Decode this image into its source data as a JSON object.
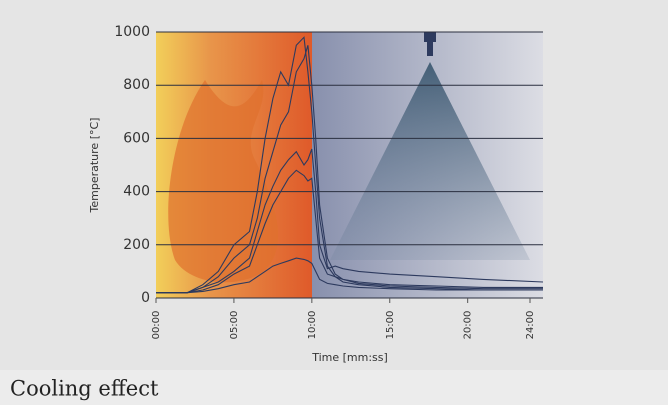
{
  "chart_data": {
    "type": "line",
    "caption": "Cooling effect",
    "xlabel": "Time [mm:ss]",
    "ylabel": "Temperature [°C]",
    "x": [
      0,
      60,
      120,
      180,
      240,
      300,
      360,
      390,
      420,
      450,
      480,
      510,
      540,
      570,
      585,
      600,
      615,
      630,
      660,
      690,
      720,
      780,
      900,
      1080,
      1260,
      1490
    ],
    "series": [
      {
        "color": "#2d3a5e",
        "values": [
          20,
          20,
          20,
          50,
          100,
          200,
          250,
          400,
          600,
          750,
          850,
          800,
          950,
          980,
          850,
          700,
          500,
          300,
          120,
          80,
          60,
          50,
          40,
          35,
          30,
          30
        ]
      },
      {
        "color": "#2d3a5e",
        "values": [
          20,
          20,
          20,
          40,
          80,
          150,
          200,
          300,
          450,
          550,
          650,
          700,
          850,
          900,
          950,
          800,
          600,
          350,
          150,
          90,
          70,
          55,
          45,
          40,
          35,
          35
        ]
      },
      {
        "color": "#2d3a5e",
        "values": [
          20,
          20,
          20,
          40,
          60,
          100,
          150,
          250,
          350,
          420,
          480,
          520,
          550,
          500,
          520,
          560,
          400,
          200,
          110,
          120,
          110,
          100,
          90,
          80,
          70,
          60
        ]
      },
      {
        "color": "#2d3a5e",
        "values": [
          20,
          20,
          20,
          30,
          50,
          90,
          120,
          200,
          280,
          350,
          400,
          450,
          480,
          460,
          440,
          450,
          300,
          150,
          90,
          80,
          70,
          60,
          50,
          45,
          40,
          40
        ]
      },
      {
        "color": "#2d3a5e",
        "values": [
          20,
          20,
          20,
          25,
          35,
          50,
          60,
          80,
          100,
          120,
          130,
          140,
          150,
          145,
          140,
          130,
          100,
          70,
          55,
          50,
          45,
          40,
          35,
          30,
          30,
          30
        ]
      }
    ],
    "xlim": [
      0,
      1490
    ],
    "xticks": [
      {
        "value": 0,
        "label": "00:00"
      },
      {
        "value": 300,
        "label": "05:00"
      },
      {
        "value": 600,
        "label": "10:00"
      },
      {
        "value": 900,
        "label": "15:00"
      },
      {
        "value": 1200,
        "label": "20:00"
      },
      {
        "value": 1440,
        "label": "24:00"
      }
    ],
    "ylim": [
      0,
      1000
    ],
    "yticks": [
      0,
      200,
      400,
      600,
      800,
      1000
    ],
    "grid": true
  }
}
